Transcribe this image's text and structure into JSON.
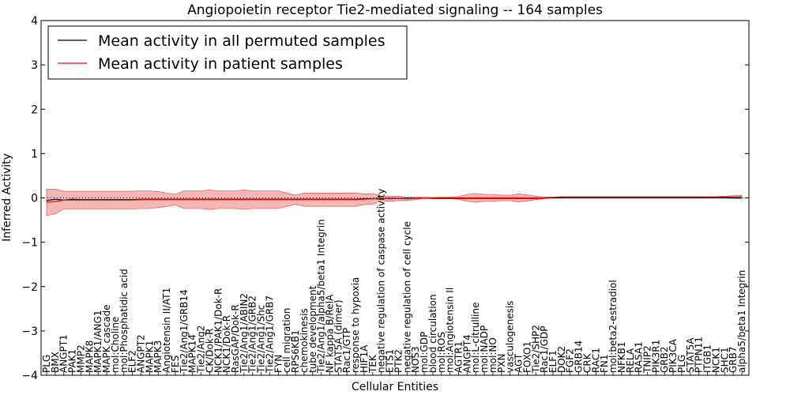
{
  "chart_data": {
    "type": "line",
    "title": "Angiopoietin receptor Tie2-mediated signaling -- 164 samples",
    "xlabel": "Cellular Entities",
    "ylabel": "Inferred Activity",
    "ylim": [
      -4,
      4
    ],
    "yticks": [
      -4,
      -3,
      -2,
      -1,
      0,
      1,
      2,
      3,
      4
    ],
    "ytick_labels": [
      "−4",
      "−3",
      "−2",
      "−1",
      "0",
      "1",
      "2",
      "3",
      "4"
    ],
    "grid": false,
    "legend_position": "top-left",
    "categories": [
      "PLG",
      "BMX",
      "ANGPT1",
      "PAK1",
      "MMP2",
      "MAPK8",
      "MAPK1/ANG1",
      "MAPK cascade",
      "mol:Choline",
      "mol:Phosphatidic acid",
      "ELF2",
      "ANGPT2",
      "MAPK1",
      "MAPK3",
      "Angiotensin II/AT1",
      "FES",
      "Tie2/Ang1/GRB14",
      "MAPK14",
      "Tie2/Ang2",
      "CK/Dok-R",
      "NCK1/PAK1/Dok-R",
      "NCK1/Dok-R",
      "RasGAP/Dok-R",
      "Tie2/Ang1/ABIN2",
      "Tie2/Ang1/GRB2",
      "Tie2/Ang1/Shc",
      "Tie2/Ang1/GRB7",
      "FYN",
      "cell migration",
      "RPS6KB1",
      "chemokinesis",
      "tube development",
      "Tie2/Ang1/alpha5/beta1 Integrin",
      "NF kappa B/RelA",
      "STAT5A (dimer)",
      "Rac1/GTP",
      "response to hypoxia",
      "HIF1A",
      "TEK",
      "negative regulation of caspase activity",
      "ETS1",
      "PTK2",
      "negative regulation of cell cycle",
      "NOS3",
      "mol:GDP",
      "blood circulation",
      "mol:ROS",
      "mol:Angiotensin II",
      "AGTR1",
      "ANGPT4",
      "mol:L-citrulline",
      "mol:NADP",
      "mol:NO",
      "PXN",
      "vasculogenesis",
      "AGT",
      "FOXO1",
      "Tie2/SHP2",
      "Rac1/GDP",
      "ELF1",
      "DOK2",
      "FGF2",
      "GRB14",
      "CRK",
      "RAC1",
      "FN1",
      "mol:beta2-estradiol",
      "NFKB1",
      "RELA",
      "RASA1",
      "TNIP2",
      "PIK3R1",
      "GRB2",
      "PIK3CA",
      "PLG",
      "STAT5A",
      "PTPN11",
      "ITGB1",
      "NCK1",
      "SHC1",
      "GRB7",
      "alpha5/beta1 Integrin"
    ],
    "series": [
      {
        "name": "Mean activity in all permuted samples",
        "color": "#000000",
        "values": [
          -0.06,
          -0.03,
          -0.05,
          -0.03,
          -0.04,
          -0.04,
          -0.04,
          -0.04,
          -0.04,
          -0.04,
          -0.04,
          -0.03,
          -0.03,
          -0.03,
          -0.03,
          -0.03,
          -0.03,
          -0.03,
          -0.03,
          -0.03,
          -0.03,
          -0.03,
          -0.03,
          -0.03,
          -0.03,
          -0.03,
          -0.03,
          -0.03,
          -0.03,
          -0.03,
          -0.03,
          -0.03,
          -0.03,
          -0.03,
          -0.03,
          -0.03,
          -0.03,
          -0.02,
          -0.02,
          -0.01,
          -0.01,
          -0.01,
          -0.01,
          -0.01,
          0.0,
          -0.01,
          -0.01,
          -0.01,
          -0.01,
          -0.01,
          -0.01,
          -0.01,
          -0.01,
          -0.01,
          -0.01,
          -0.01,
          -0.01,
          -0.01,
          0.0,
          0.0,
          0.0,
          0.0,
          0.0,
          0.0,
          0.0,
          0.0,
          0.0,
          0.0,
          0.0,
          0.0,
          0.0,
          0.0,
          0.0,
          0.0,
          0.0,
          0.0,
          0.0,
          0.0,
          0.0,
          0.0,
          0.0,
          0.0
        ]
      },
      {
        "name": "Mean activity in patient samples",
        "color": "#ff0000",
        "band_color": "#f07a7a",
        "values": [
          -0.1,
          -0.08,
          -0.05,
          -0.05,
          -0.05,
          -0.05,
          -0.05,
          -0.05,
          -0.05,
          -0.05,
          -0.05,
          -0.04,
          -0.04,
          -0.04,
          -0.04,
          -0.04,
          -0.04,
          -0.04,
          -0.04,
          -0.04,
          -0.04,
          -0.04,
          -0.04,
          -0.04,
          -0.04,
          -0.04,
          -0.04,
          -0.04,
          -0.04,
          -0.04,
          -0.04,
          -0.04,
          -0.04,
          -0.04,
          -0.04,
          -0.04,
          -0.04,
          -0.03,
          -0.02,
          -0.01,
          -0.02,
          -0.01,
          -0.02,
          -0.01,
          0.0,
          0.0,
          0.0,
          0.0,
          0.0,
          0.0,
          0.0,
          0.0,
          0.0,
          0.0,
          0.0,
          0.0,
          0.0,
          0.0,
          0.0,
          0.01,
          0.02,
          0.02,
          0.02,
          0.02,
          0.02,
          0.02,
          0.02,
          0.02,
          0.02,
          0.02,
          0.02,
          0.02,
          0.02,
          0.02,
          0.02,
          0.02,
          0.02,
          0.02,
          0.02,
          0.02,
          0.02,
          0.02
        ],
        "spread": [
          0.3,
          0.28,
          0.2,
          0.2,
          0.2,
          0.2,
          0.2,
          0.2,
          0.2,
          0.2,
          0.2,
          0.2,
          0.2,
          0.18,
          0.15,
          0.12,
          0.2,
          0.2,
          0.2,
          0.22,
          0.2,
          0.2,
          0.2,
          0.22,
          0.2,
          0.2,
          0.2,
          0.2,
          0.15,
          0.1,
          0.15,
          0.15,
          0.15,
          0.15,
          0.15,
          0.15,
          0.15,
          0.12,
          0.12,
          0.05,
          0.06,
          0.05,
          0.04,
          0.03,
          0.01,
          0.01,
          0.02,
          0.02,
          0.03,
          0.08,
          0.1,
          0.08,
          0.08,
          0.06,
          0.06,
          0.09,
          0.07,
          0.04,
          0.02,
          0.01,
          0.01,
          0.01,
          0.01,
          0.01,
          0.01,
          0.01,
          0.01,
          0.01,
          0.01,
          0.01,
          0.01,
          0.01,
          0.01,
          0.01,
          0.01,
          0.01,
          0.01,
          0.01,
          0.01,
          0.02,
          0.03,
          0.04
        ]
      }
    ],
    "reference_line": {
      "y": 0,
      "style": "dotted",
      "color": "#000000"
    }
  }
}
